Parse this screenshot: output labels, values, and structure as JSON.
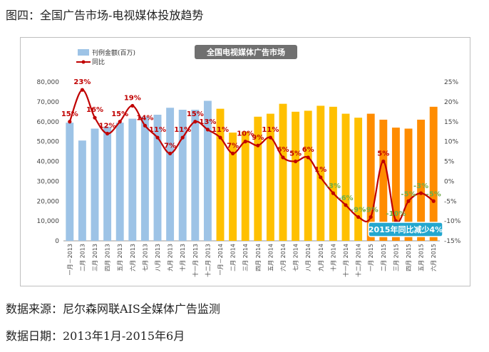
{
  "figure_title": "图四：全国广告市场-电视媒体投放趋势",
  "source_note": "数据来源：尼尔森网联AIS全媒体广告监测",
  "date_note": "数据日期：2013年1月-2015年6月",
  "colors": {
    "bar_2013": "#9dc3e6",
    "bar_2014": "#ffc000",
    "bar_2015": "#ff8c00",
    "line": "#c00000",
    "label_positive": "#c00000",
    "label_negative": "#70ad47",
    "banner_bg": "#707070",
    "callout_bg": "#23a7cf"
  },
  "chart_data": {
    "type": "bar+line",
    "title": "全国电视媒体广告市场",
    "legend": [
      "刊例金额(百万)",
      "同比"
    ],
    "legend_position": "top-left",
    "callout": "2015年同比减少4%",
    "y_left": {
      "min": 0,
      "max": 80000,
      "ticks": [
        "0",
        "10,000",
        "20,000",
        "30,000",
        "40,000",
        "50,000",
        "60,000",
        "70,000",
        "80,000"
      ]
    },
    "y_right": {
      "min": -15,
      "max": 25,
      "ticks": [
        "-15%",
        "-10%",
        "-5%",
        "0%",
        "5%",
        "10%",
        "15%",
        "20%",
        "25%"
      ]
    },
    "categories": [
      "一月－2013",
      "二月 2013",
      "三月 2013",
      "四月 2013",
      "五月 2013",
      "六月 2013",
      "七月 2013",
      "八月 2013",
      "九月 2013",
      "十月 2013",
      "十一月 2013",
      "十二月 2013",
      "一月－2014",
      "二月 2014",
      "三月 2014",
      "四月 2014",
      "五月 2014",
      "六月 2014",
      "七月 2014",
      "八月 2014",
      "九月 2014",
      "十月 2014",
      "十一月 2014",
      "十二月 2014",
      "一月 2015",
      "二月 2015",
      "三月 2015",
      "四月 2015",
      "五月 2015",
      "六月 2015"
    ],
    "series": [
      {
        "name": "刊例金额(百万)",
        "kind": "bar",
        "values": [
          59500,
          50500,
          56500,
          57500,
          59500,
          61500,
          62500,
          63500,
          67000,
          66000,
          66000,
          70500,
          66500,
          54500,
          55000,
          62500,
          64000,
          69000,
          65000,
          65500,
          68000,
          67500,
          64000,
          62000,
          64000,
          61000,
          57000,
          56500,
          61000,
          67500
        ]
      },
      {
        "name": "同比",
        "kind": "line",
        "values": [
          15,
          23,
          16,
          12,
          15,
          19,
          14,
          11,
          7,
          11,
          15,
          13,
          11,
          7,
          10,
          9,
          11,
          6,
          5,
          6,
          1,
          -3,
          -6,
          -9,
          -9,
          5,
          -10,
          -5,
          -3,
          -5
        ],
        "labels": [
          "15%",
          "23%",
          "16%",
          "12%",
          "15%",
          "19%",
          "14%",
          "11%",
          "7%",
          "11%",
          "15%",
          "13%",
          "11%",
          "7%",
          "10%",
          "9%",
          "11%",
          "6%",
          "5%",
          "6%",
          "1%",
          "-3%",
          "-6%",
          "-9%",
          "-9%",
          "5%",
          "-10%",
          "-5%",
          "-3%",
          "-5%"
        ]
      }
    ]
  }
}
